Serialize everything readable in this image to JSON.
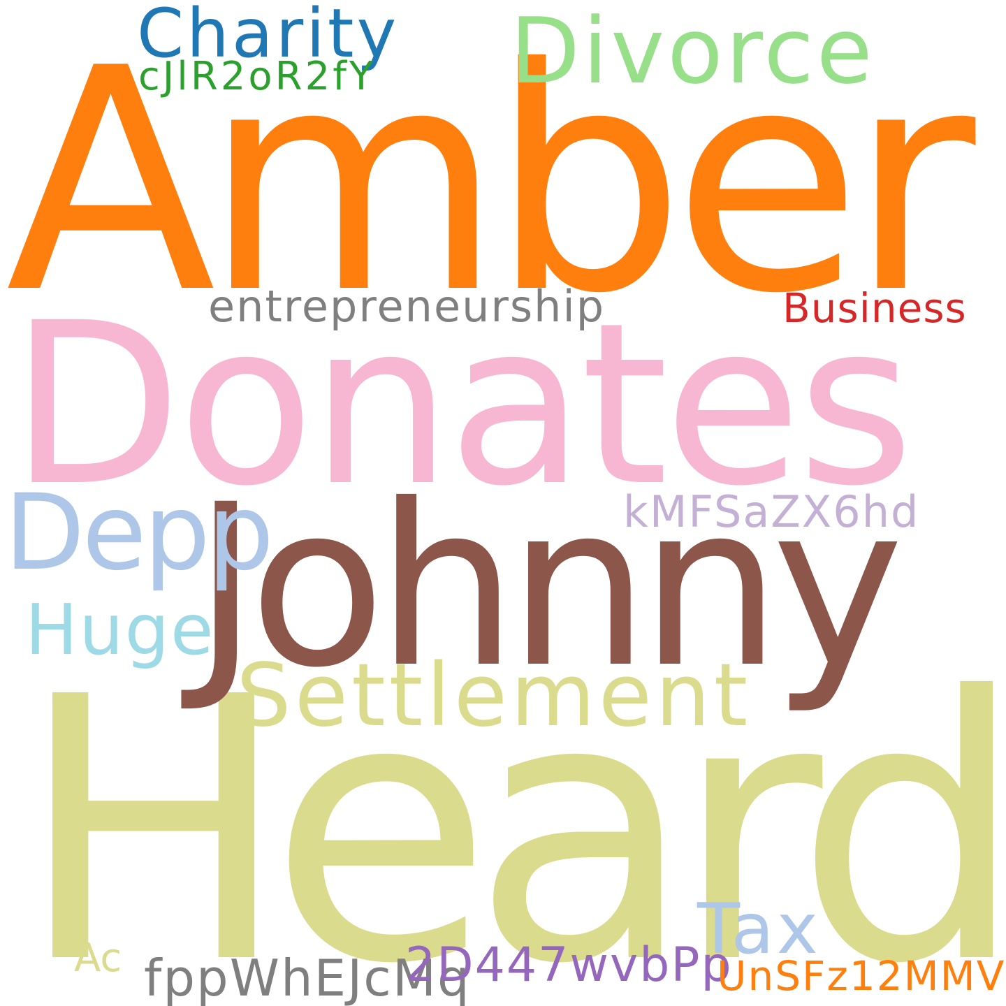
{
  "words": [
    {
      "text": "Amber",
      "color": "#ff7f0e"
    },
    {
      "text": "Donates",
      "color": "#f7b6d2"
    },
    {
      "text": "Heard",
      "color": "#dbdb8d"
    },
    {
      "text": "Johnny",
      "color": "#8c564b"
    },
    {
      "text": "Divorce",
      "color": "#98df8a"
    },
    {
      "text": "Charity",
      "color": "#1f77b4"
    },
    {
      "text": "cJlR2oR2fY",
      "color": "#2ca02c"
    },
    {
      "text": "entrepreneurship",
      "color": "#7f7f7f"
    },
    {
      "text": "Business",
      "color": "#d62728"
    },
    {
      "text": "Depp",
      "color": "#aec7e8"
    },
    {
      "text": "kMFSaZX6hd",
      "color": "#c5b0d5"
    },
    {
      "text": "Huge",
      "color": "#9edae5"
    },
    {
      "text": "Settlement",
      "color": "#dbdb8d"
    },
    {
      "text": "Tax",
      "color": "#aec7e8"
    },
    {
      "text": "Ac",
      "color": "#dbdb8d"
    },
    {
      "text": "fppWhEJcMq",
      "color": "#7f7f7f"
    },
    {
      "text": "2D447wvbPp",
      "color": "#9467bd"
    },
    {
      "text": "UnSFz12MMV",
      "color": "#ff7f0e"
    }
  ]
}
